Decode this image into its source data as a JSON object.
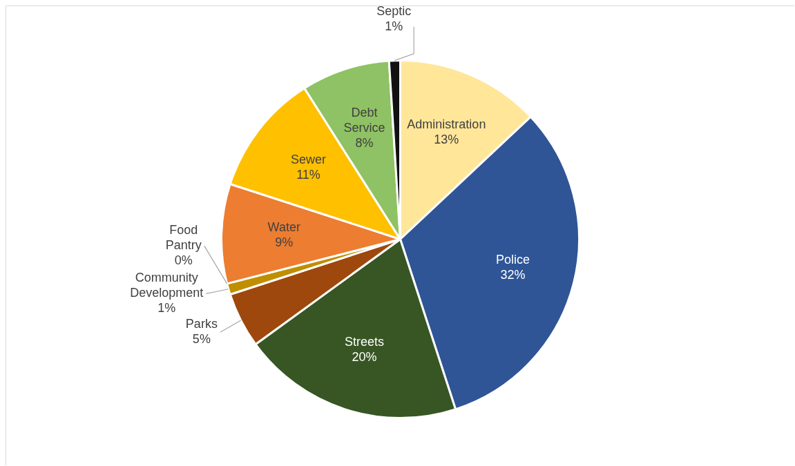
{
  "chart_data": {
    "type": "pie",
    "categories": [
      "Administration",
      "Police",
      "Streets",
      "Parks",
      "Community Development",
      "Food Pantry",
      "Water",
      "Sewer",
      "Debt Service",
      "Septic"
    ],
    "values": [
      13,
      32,
      20,
      5,
      1,
      0,
      9,
      11,
      8,
      1
    ],
    "value_labels": [
      "13%",
      "32%",
      "20%",
      "5%",
      "1%",
      "0%",
      "9%",
      "11%",
      "8%",
      "1%"
    ],
    "colors": [
      "#ffe699",
      "#2f5597",
      "#375623",
      "#9e480e",
      "#bf8f00",
      "#7f6000",
      "#ed7d31",
      "#ffc000",
      "#8fc264",
      "#111111"
    ]
  }
}
